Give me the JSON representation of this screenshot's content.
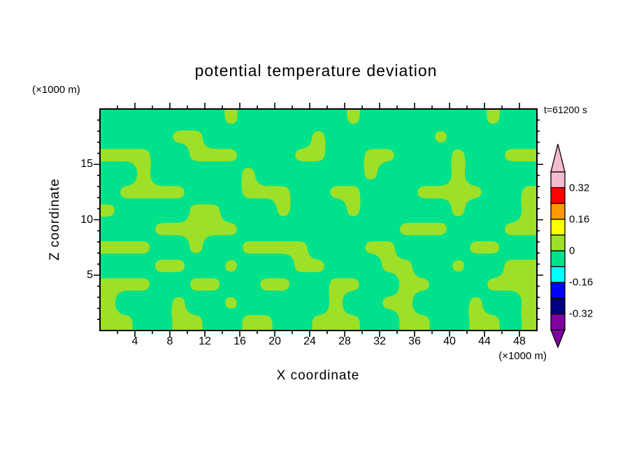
{
  "chart_data": {
    "type": "filled_contour",
    "title": "potential temperature deviation",
    "time": "t=61200 s",
    "xlabel": "X coordinate",
    "ylabel": "Z coordinate",
    "x_unit": "(×1000 m)",
    "y_unit": "(×1000 m)",
    "xlim": [
      0,
      50
    ],
    "zlim": [
      0,
      20
    ],
    "x_tick_labels": [
      4,
      8,
      12,
      16,
      20,
      24,
      28,
      32,
      36,
      40,
      44,
      48
    ],
    "x_minor_tick_step": 2,
    "y_tick_labels": [
      5,
      10,
      15
    ],
    "y_minor_tick_step": 1,
    "colorbar": {
      "tick_labels": [
        "0.32",
        "0.16",
        "0",
        "-0.16",
        "-0.32"
      ],
      "tick_boundary_indices": [
        1,
        3,
        5,
        7,
        9
      ],
      "segment_value_step": 0.08,
      "segments_top_to_bottom": [
        {
          "range": [
            0.32,
            0.4
          ],
          "color": "#F2BCCC"
        },
        {
          "range": [
            0.24,
            0.32
          ],
          "color": "#FF0000"
        },
        {
          "range": [
            0.16,
            0.24
          ],
          "color": "#FF9900"
        },
        {
          "range": [
            0.08,
            0.16
          ],
          "color": "#FFFF00"
        },
        {
          "range": [
            0,
            0.08
          ],
          "color": "#9EE028"
        },
        {
          "range": [
            -0.08,
            0
          ],
          "color": "#00E18C"
        },
        {
          "range": [
            -0.16,
            -0.08
          ],
          "color": "#00FFFF"
        },
        {
          "range": [
            -0.24,
            -0.16
          ],
          "color": "#0000FF"
        },
        {
          "range": [
            -0.32,
            -0.24
          ],
          "color": "#000080"
        },
        {
          "range": [
            -0.4,
            -0.32
          ],
          "color": "#8000A0"
        }
      ],
      "over_arrow_color": "#F2BCCC",
      "under_arrow_color": "#8000A0"
    },
    "field": {
      "positive_band_color": "#9EE028",
      "negative_band_color": "#00E18C",
      "band_values": {
        "0": "0 to 0.08",
        "1": "-0.08 to 0"
      },
      "grid_cols": 25,
      "grid_rows": 12,
      "grid_rows_top_to_bottom": [
        "1111111011111101111111011",
        "1111001111110111111011111",
        "0001100011100110011101100",
        "1101111101111110111101111",
        "1000011100011001110000110",
        "0111100111011101111101110",
        "1110000011111111100011100",
        "0001101100001110011110011",
        "1110011011100111001101100",
        "0001100110011001100111000",
        "0111011011111011001110110",
        "0011001100110001100110010"
      ]
    }
  }
}
